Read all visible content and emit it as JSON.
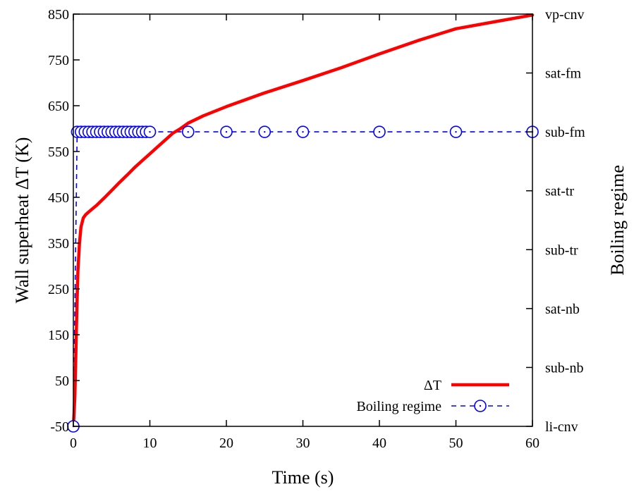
{
  "chart_data": {
    "type": "line",
    "xlabel": "Time (s)",
    "ylabel": "Wall superheat ΔT (K)",
    "y2label": "Boiling regime",
    "xlim": [
      0,
      60
    ],
    "ylim": [
      -50,
      850
    ],
    "xticks": [
      "0",
      "10",
      "20",
      "30",
      "40",
      "50",
      "60"
    ],
    "yticks": [
      "-50",
      "50",
      "150",
      "250",
      "350",
      "450",
      "550",
      "650",
      "750",
      "850"
    ],
    "y2ticks": [
      "li-cnv",
      "sub-nb",
      "sat-nb",
      "sub-tr",
      "sat-tr",
      "sub-fm",
      "sat-fm",
      "vp-cnv"
    ],
    "grid": false,
    "legend_position": "bottom-right",
    "series": [
      {
        "name": "ΔT",
        "color": "#ff0000",
        "axis": "left",
        "style": "solid",
        "x": [
          0,
          0.1,
          0.2,
          0.3,
          0.4,
          0.5,
          0.6,
          0.8,
          1.0,
          1.3,
          1.6,
          2.0,
          3,
          4,
          5,
          6,
          7,
          8,
          9,
          10,
          11,
          12,
          13,
          14,
          15,
          17,
          20,
          25,
          30,
          35,
          40,
          45,
          50,
          55,
          60
        ],
        "y": [
          -50,
          -20,
          20,
          90,
          160,
          230,
          290,
          350,
          385,
          405,
          412,
          418,
          432,
          448,
          465,
          482,
          498,
          515,
          530,
          545,
          560,
          575,
          590,
          600,
          612,
          628,
          648,
          678,
          705,
          733,
          763,
          792,
          818,
          833,
          848
        ]
      },
      {
        "name": "Boiling regime",
        "color": "#0000ff",
        "axis": "right",
        "style": "dashed",
        "marker": "circle",
        "x": [
          0,
          0.5,
          1,
          1.5,
          2,
          2.5,
          3,
          3.5,
          4,
          4.5,
          5,
          5.5,
          6,
          6.5,
          7,
          7.5,
          8,
          8.5,
          9,
          9.5,
          10,
          15,
          20,
          25,
          30,
          40,
          50,
          60
        ],
        "y": [
          "li-cnv",
          "sub-fm",
          "sub-fm",
          "sub-fm",
          "sub-fm",
          "sub-fm",
          "sub-fm",
          "sub-fm",
          "sub-fm",
          "sub-fm",
          "sub-fm",
          "sub-fm",
          "sub-fm",
          "sub-fm",
          "sub-fm",
          "sub-fm",
          "sub-fm",
          "sub-fm",
          "sub-fm",
          "sub-fm",
          "sub-fm",
          "sub-fm",
          "sub-fm",
          "sub-fm",
          "sub-fm",
          "sub-fm",
          "sub-fm",
          "sub-fm"
        ]
      }
    ]
  }
}
